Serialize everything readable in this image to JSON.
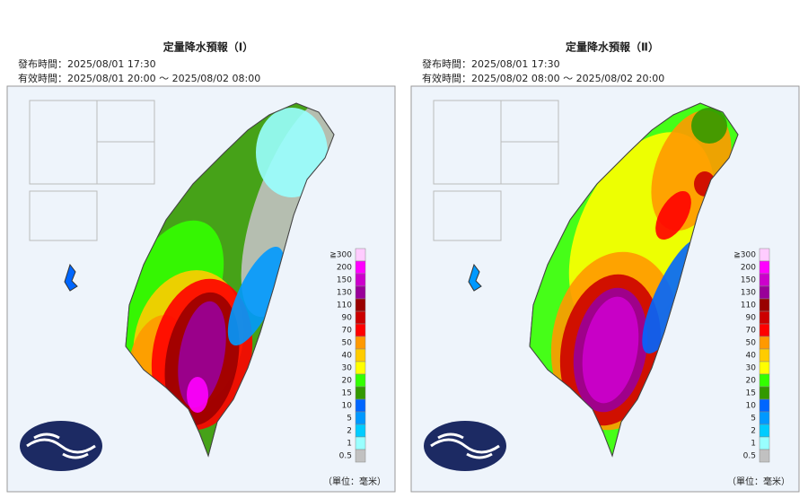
{
  "panels": [
    {
      "title": "定量降水預報（Ⅰ）",
      "issued": "發布時間：2025/08/01 17:30",
      "valid": "有效時間：2025/08/01 20:00 ～ 2025/08/02 08:00",
      "unit": "（單位：毫米）"
    },
    {
      "title": "定量降水預報（Ⅱ）",
      "issued": "發布時間：2025/08/01 17:30",
      "valid": "有效時間：2025/08/02 08:00 ～ 2025/08/02 20:00",
      "unit": "（單位：毫米）"
    }
  ],
  "legend": [
    {
      "label": "≧300",
      "color": "#ffccff"
    },
    {
      "label": "200",
      "color": "#ff00ff"
    },
    {
      "label": "150",
      "color": "#cc00cc"
    },
    {
      "label": "130",
      "color": "#990099"
    },
    {
      "label": "110",
      "color": "#990000"
    },
    {
      "label": "90",
      "color": "#cc0000"
    },
    {
      "label": "70",
      "color": "#ff0000"
    },
    {
      "label": "50",
      "color": "#ff9900"
    },
    {
      "label": "40",
      "color": "#ffcc00"
    },
    {
      "label": "30",
      "color": "#ffff00"
    },
    {
      "label": "20",
      "color": "#33ff00"
    },
    {
      "label": "15",
      "color": "#339900"
    },
    {
      "label": "10",
      "color": "#0066ff"
    },
    {
      "label": "5",
      "color": "#0099ff"
    },
    {
      "label": "2",
      "color": "#00ccff"
    },
    {
      "label": "1",
      "color": "#99ffff"
    },
    {
      "label": "0.5",
      "color": "#c1c1c1"
    }
  ]
}
